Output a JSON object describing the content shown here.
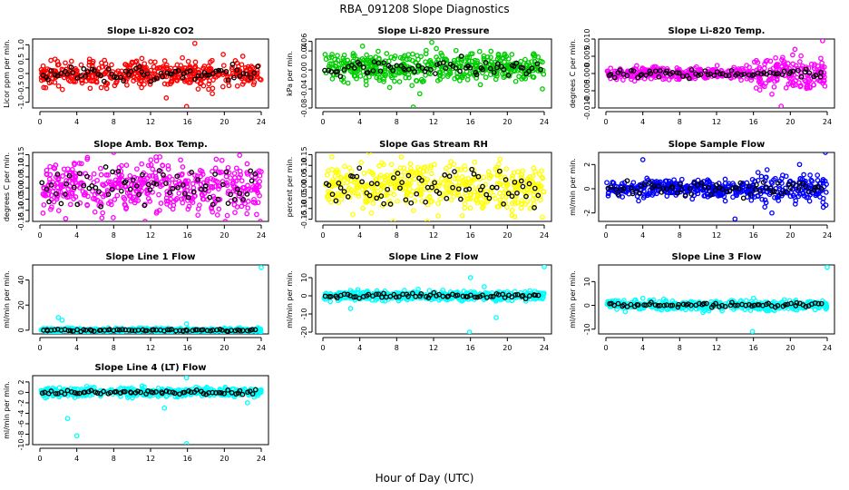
{
  "figure": {
    "title": "RBA_091208  Slope Diagnostics",
    "xlabel": "Hour of Day (UTC)"
  },
  "chart_data": [
    {
      "type": "scatter",
      "title": "Slope Li-820 CO2",
      "ylabel": "Licor ppm per min.",
      "color": "#ff0000",
      "xlim": [
        0,
        24
      ],
      "ylim": [
        -1.2,
        1.2
      ],
      "x_ticks": [
        "0",
        "4",
        "8",
        "12",
        "16",
        "20",
        "24"
      ],
      "y_ticks": [
        {
          "v": -1.0,
          "label": "-1.0"
        },
        {
          "v": -0.5,
          "label": "-0.5"
        },
        {
          "v": 0.0,
          "label": "0.0"
        },
        {
          "v": 0.5,
          "label": "0.5"
        },
        {
          "v": 1.0,
          "label": "1.0"
        }
      ],
      "spread": 0.32,
      "noise_mid": 0.0,
      "black_spread": 0.18,
      "outliers": [
        [
          15.9,
          -1.15
        ],
        [
          16.8,
          1.05
        ],
        [
          13.7,
          -0.85
        ],
        [
          18.7,
          -0.7
        ],
        [
          22.0,
          0.6
        ]
      ]
    },
    {
      "type": "scatter",
      "title": "Slope Li-820 Pressure",
      "ylabel": "kPa per min.",
      "color": "#00cc00",
      "xlim": [
        0,
        24
      ],
      "ylim": [
        -0.08,
        0.065
      ],
      "x_ticks": [
        "0",
        "4",
        "8",
        "12",
        "16",
        "20",
        "24"
      ],
      "y_ticks": [
        {
          "v": -0.08,
          "label": "-0.08"
        },
        {
          "v": -0.04,
          "label": "-0.04"
        },
        {
          "v": 0.0,
          "label": "0.00"
        },
        {
          "v": 0.04,
          "label": "0.04"
        },
        {
          "v": 0.06,
          "label": "0.06"
        }
      ],
      "spread": 0.022,
      "noise_mid": 0.005,
      "black_spread": 0.012,
      "outliers": [
        [
          9.8,
          -0.078
        ],
        [
          4.3,
          0.05
        ],
        [
          11.8,
          0.058
        ],
        [
          23.8,
          -0.04
        ],
        [
          10.5,
          -0.05
        ]
      ]
    },
    {
      "type": "scatter",
      "title": "Slope Li-820 Temp.",
      "ylabel": "degrees C per min.",
      "color": "#ff00ff",
      "xlim": [
        0,
        24
      ],
      "ylim": [
        -0.01,
        0.01
      ],
      "x_ticks": [
        "0",
        "4",
        "8",
        "12",
        "16",
        "20",
        "24"
      ],
      "y_ticks": [
        {
          "v": -0.01,
          "label": "-0.010"
        },
        {
          "v": -0.005,
          "label": "-0.005"
        },
        {
          "v": 0.0,
          "label": "0.000"
        },
        {
          "v": 0.005,
          "label": "0.005"
        },
        {
          "v": 0.01,
          "label": "0.010"
        }
      ],
      "spread": 0.0012,
      "noise_mid": 0.0,
      "black_spread": 0.0008,
      "late_spread": 0.0035,
      "outliers": [
        [
          19.0,
          -0.0095
        ],
        [
          23.5,
          0.0095
        ],
        [
          20.5,
          0.007
        ],
        [
          18.0,
          -0.006
        ]
      ]
    },
    {
      "type": "scatter",
      "title": "Slope Amb. Box Temp.",
      "ylabel": "degrees C per min.",
      "color": "#ff00ff",
      "xlim": [
        0,
        24
      ],
      "ylim": [
        -0.15,
        0.16
      ],
      "x_ticks": [
        "0",
        "4",
        "8",
        "12",
        "16",
        "20",
        "24"
      ],
      "y_ticks": [
        {
          "v": -0.15,
          "label": "-0.15"
        },
        {
          "v": -0.1,
          "label": "-0.10"
        },
        {
          "v": -0.05,
          "label": "-0.05"
        },
        {
          "v": 0.0,
          "label": "0.00"
        },
        {
          "v": 0.05,
          "label": "0.05"
        },
        {
          "v": 0.1,
          "label": "0.10"
        },
        {
          "v": 0.15,
          "label": "0.15"
        }
      ],
      "spread": 0.08,
      "noise_mid": 0.0,
      "black_spread": 0.06,
      "outliers": [
        [
          8.0,
          0.16
        ],
        [
          23.9,
          -0.15
        ],
        [
          4.5,
          0.11
        ],
        [
          13.0,
          0.14
        ]
      ]
    },
    {
      "type": "scatter",
      "title": "Slope Gas Stream RH",
      "ylabel": "percent per min.",
      "color": "#ffff00",
      "xlim": [
        0,
        24
      ],
      "ylim": [
        -0.16,
        0.16
      ],
      "x_ticks": [
        "0",
        "4",
        "8",
        "12",
        "16",
        "20",
        "24"
      ],
      "y_ticks": [
        {
          "v": -0.15,
          "label": "-0.15"
        },
        {
          "v": -0.1,
          "label": "-0.10"
        },
        {
          "v": -0.05,
          "label": "-0.05"
        },
        {
          "v": 0.0,
          "label": "0.00"
        },
        {
          "v": 0.05,
          "label": "0.05"
        },
        {
          "v": 0.1,
          "label": "0.10"
        },
        {
          "v": 0.15,
          "label": "0.15"
        }
      ],
      "spread": 0.08,
      "noise_mid": 0.0,
      "black_spread": 0.06,
      "outliers": [
        [
          5.0,
          0.16
        ],
        [
          23.8,
          -0.14
        ],
        [
          8.5,
          0.14
        ]
      ]
    },
    {
      "type": "scatter",
      "title": "Slope Sample Flow",
      "ylabel": "ml/min per min.",
      "color": "#0000ff",
      "xlim": [
        0,
        24
      ],
      "ylim": [
        -2.7,
        3.0
      ],
      "x_ticks": [
        "0",
        "4",
        "8",
        "12",
        "16",
        "20",
        "24"
      ],
      "y_ticks": [
        {
          "v": -2,
          "label": "-2"
        },
        {
          "v": 0,
          "label": "0"
        },
        {
          "v": 2,
          "label": "2"
        }
      ],
      "spread": 0.5,
      "noise_mid": 0.0,
      "black_spread": 0.4,
      "late_spread": 0.9,
      "outliers": [
        [
          4.0,
          2.4
        ],
        [
          23.8,
          3.0
        ],
        [
          21.0,
          2.0
        ],
        [
          14.0,
          -2.5
        ],
        [
          18.0,
          -2.0
        ]
      ]
    },
    {
      "type": "scatter",
      "title": "Slope Line 1 Flow",
      "ylabel": "ml/min per min.",
      "color": "#00ffff",
      "xlim": [
        0,
        24
      ],
      "ylim": [
        -3,
        52
      ],
      "x_ticks": [
        "0",
        "4",
        "8",
        "12",
        "16",
        "20",
        "24"
      ],
      "y_ticks": [
        {
          "v": 0,
          "label": "0"
        },
        {
          "v": 20,
          "label": "20"
        },
        {
          "v": 40,
          "label": "40"
        }
      ],
      "spread": 1.2,
      "noise_mid": 0.0,
      "black_spread": 0.5,
      "outliers": [
        [
          24.0,
          50
        ],
        [
          2.0,
          10
        ],
        [
          2.4,
          8
        ],
        [
          15.9,
          5
        ]
      ]
    },
    {
      "type": "scatter",
      "title": "Slope Line 2 Flow",
      "ylabel": "ml/min per min.",
      "color": "#00ffff",
      "xlim": [
        0,
        24
      ],
      "ylim": [
        -21,
        17
      ],
      "x_ticks": [
        "0",
        "4",
        "8",
        "12",
        "16",
        "20",
        "24"
      ],
      "y_ticks": [
        {
          "v": -20,
          "label": "-20"
        },
        {
          "v": -10,
          "label": "-10"
        },
        {
          "v": 0,
          "label": "0"
        },
        {
          "v": 10,
          "label": "10"
        }
      ],
      "spread": 1.8,
      "noise_mid": 0.0,
      "black_spread": 1.0,
      "outliers": [
        [
          24.0,
          16
        ],
        [
          15.9,
          -20
        ],
        [
          16.0,
          10
        ],
        [
          18.8,
          -12
        ],
        [
          3.0,
          -7
        ],
        [
          17.5,
          5
        ]
      ]
    },
    {
      "type": "scatter",
      "title": "Slope Line 3 Flow",
      "ylabel": "ml/min per min.",
      "color": "#00ffff",
      "xlim": [
        0,
        24
      ],
      "ylim": [
        -12,
        17
      ],
      "x_ticks": [
        "0",
        "4",
        "8",
        "12",
        "16",
        "20",
        "24"
      ],
      "y_ticks": [
        {
          "v": -10,
          "label": "-10"
        },
        {
          "v": 0,
          "label": "0"
        },
        {
          "v": 10,
          "label": "10"
        }
      ],
      "spread": 1.4,
      "noise_mid": 0.0,
      "black_spread": 0.8,
      "outliers": [
        [
          24.0,
          16
        ],
        [
          15.9,
          -11
        ],
        [
          4.0,
          3
        ],
        [
          16.0,
          3
        ]
      ]
    },
    {
      "type": "scatter",
      "title": "Slope Line 4 (LT) Flow",
      "ylabel": "ml/min per min.",
      "color": "#00ffff",
      "xlim": [
        0,
        24
      ],
      "ylim": [
        -10,
        3.2
      ],
      "x_ticks": [
        "0",
        "4",
        "8",
        "12",
        "16",
        "20",
        "24"
      ],
      "y_ticks": [
        {
          "v": -10,
          "label": "-10"
        },
        {
          "v": -8,
          "label": "-8"
        },
        {
          "v": -6,
          "label": "-6"
        },
        {
          "v": -4,
          "label": "-4"
        },
        {
          "v": -2,
          "label": "-2"
        },
        {
          "v": 0,
          "label": "0"
        },
        {
          "v": 2,
          "label": "2"
        }
      ],
      "spread": 0.6,
      "noise_mid": 0.0,
      "black_spread": 0.3,
      "outliers": [
        [
          15.9,
          -9.8
        ],
        [
          4.0,
          -8.3
        ],
        [
          3.0,
          -5
        ],
        [
          15.9,
          2.8
        ],
        [
          13.5,
          -3
        ],
        [
          22.5,
          -2
        ]
      ]
    }
  ]
}
